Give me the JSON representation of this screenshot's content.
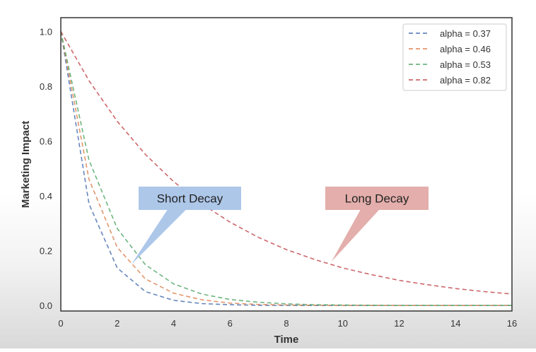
{
  "chart_data": {
    "type": "line",
    "title": "",
    "xlabel": "Time",
    "ylabel": "Marketing Impact",
    "xlim": [
      0,
      16
    ],
    "ylim": [
      -0.02,
      1.05
    ],
    "x_ticks": [
      "0",
      "2",
      "4",
      "6",
      "8",
      "10",
      "12",
      "14",
      "16"
    ],
    "y_ticks": [
      "0.0",
      "0.2",
      "0.4",
      "0.6",
      "0.8",
      "1.0"
    ],
    "x": [
      0,
      1,
      2,
      3,
      4,
      5,
      6,
      7,
      8,
      9,
      10,
      11,
      12,
      13,
      14,
      15,
      16
    ],
    "series": [
      {
        "name": "alpha = 0.37",
        "alpha": 0.37,
        "color": "#4c72b0",
        "line_style": "dashed",
        "values": [
          1.0,
          0.37,
          0.137,
          0.051,
          0.019,
          0.007,
          0.003,
          0.001,
          0.0,
          0.0,
          0.0,
          0.0,
          0.0,
          0.0,
          0.0,
          0.0,
          0.0
        ]
      },
      {
        "name": "alpha = 0.46",
        "alpha": 0.46,
        "color": "#dd8452",
        "line_style": "dashed",
        "values": [
          1.0,
          0.46,
          0.212,
          0.097,
          0.045,
          0.021,
          0.009,
          0.004,
          0.002,
          0.001,
          0.0,
          0.0,
          0.0,
          0.0,
          0.0,
          0.0,
          0.0
        ]
      },
      {
        "name": "alpha = 0.53",
        "alpha": 0.53,
        "color": "#55a868",
        "line_style": "dashed",
        "values": [
          1.0,
          0.53,
          0.281,
          0.149,
          0.079,
          0.042,
          0.022,
          0.012,
          0.006,
          0.003,
          0.002,
          0.001,
          0.0,
          0.0,
          0.0,
          0.0,
          0.0
        ]
      },
      {
        "name": "alpha = 0.82",
        "alpha": 0.82,
        "color": "#c44e52",
        "line_style": "dashed",
        "values": [
          1.0,
          0.82,
          0.672,
          0.551,
          0.452,
          0.371,
          0.304,
          0.249,
          0.204,
          0.168,
          0.137,
          0.113,
          0.092,
          0.076,
          0.062,
          0.051,
          0.042
        ]
      }
    ],
    "legend_position": "top-right",
    "grid": false,
    "annotations": [
      {
        "text": "Short Decay",
        "fill": "#a9c4e8",
        "points_to": [
          2.5,
          0.15
        ]
      },
      {
        "text": "Long Decay",
        "fill": "#e2aaa6",
        "points_to": [
          9.6,
          0.16
        ]
      }
    ]
  }
}
